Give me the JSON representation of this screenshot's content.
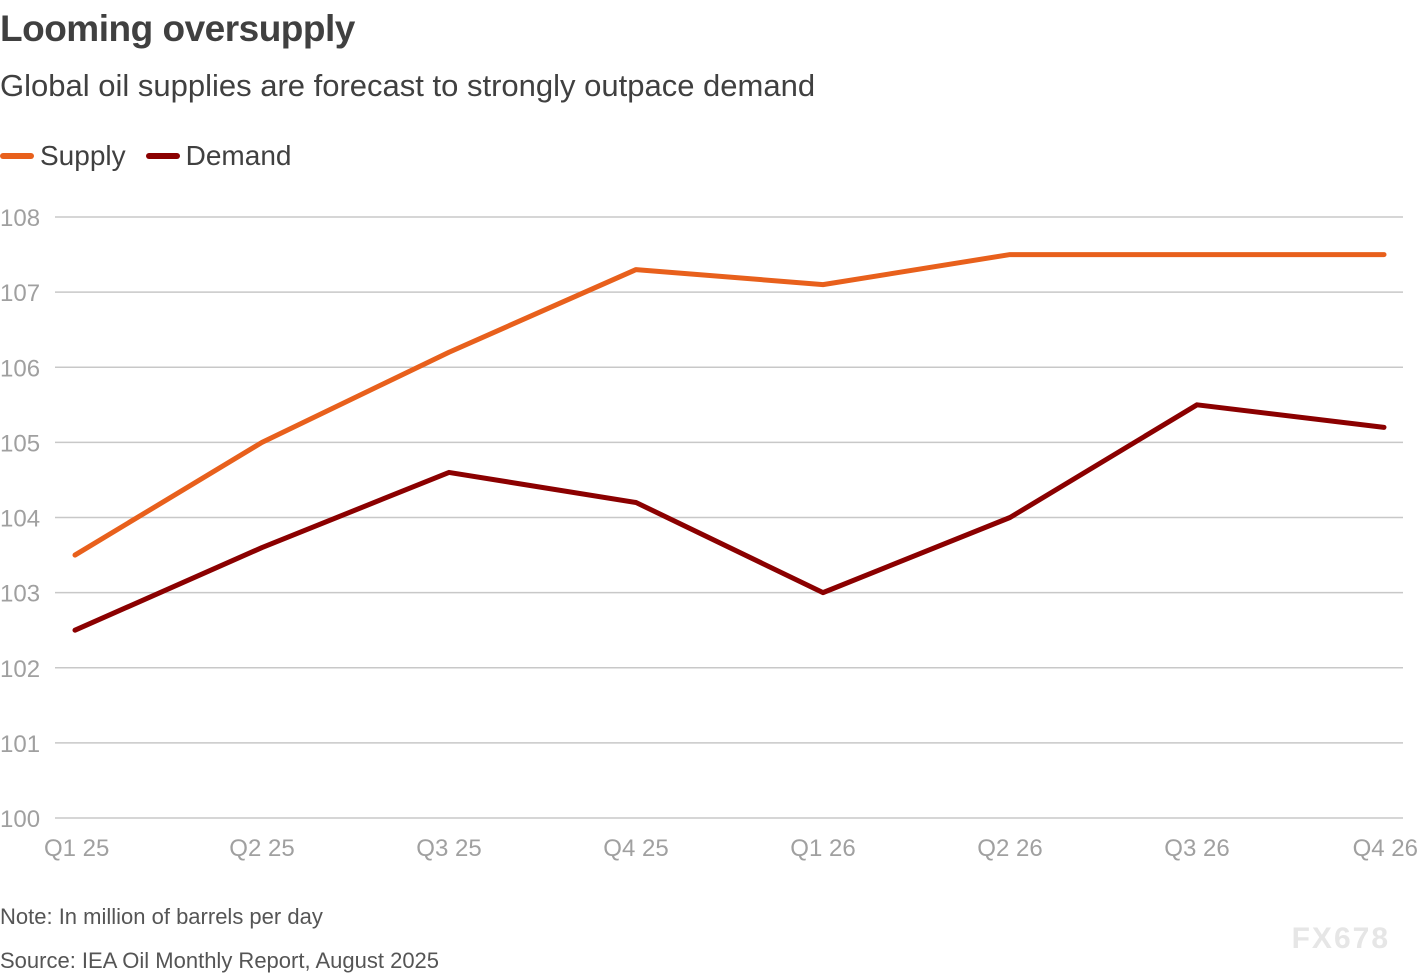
{
  "header": {
    "title": "Looming oversupply",
    "subtitle": "Global oil supplies are forecast to strongly outpace demand"
  },
  "footer": {
    "note": "Note: In million of barrels per day",
    "source": "Source: IEA Oil Monthly Report, August 2025",
    "watermark": "FX678"
  },
  "chart_data": {
    "type": "line",
    "title": "Looming oversupply",
    "subtitle": "Global oil supplies are forecast to strongly outpace demand",
    "categories": [
      "Q1 25",
      "Q2 25",
      "Q3 25",
      "Q4 25",
      "Q1 26",
      "Q2 26",
      "Q3 26",
      "Q4 26"
    ],
    "yticks": [
      "100",
      "101",
      "102",
      "103",
      "104",
      "105",
      "106",
      "107",
      "108"
    ],
    "ylim": [
      100,
      108
    ],
    "grid": true,
    "legend_position": "top-left",
    "series": [
      {
        "name": "Supply",
        "color": "#e8601c",
        "values": [
          103.5,
          105.0,
          106.2,
          107.3,
          107.1,
          107.5,
          107.5,
          107.5
        ]
      },
      {
        "name": "Demand",
        "color": "#8b0000",
        "values": [
          102.5,
          103.6,
          104.6,
          104.2,
          103.0,
          104.0,
          105.5,
          105.2
        ]
      }
    ]
  }
}
